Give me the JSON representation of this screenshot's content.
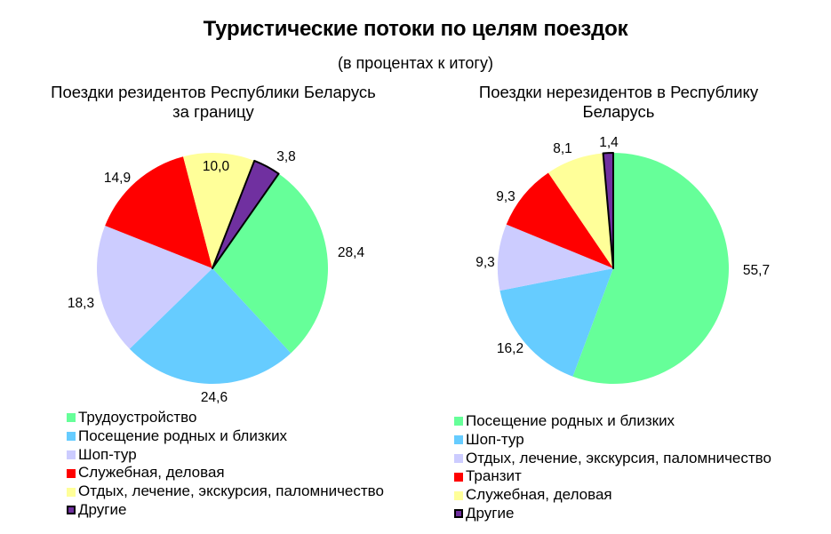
{
  "title": "Туристические потоки по целям поездок",
  "subtitle": "(в процентах к итогу)",
  "charts": {
    "left": {
      "title_line1": "Поездки резидентов Республики Беларусь",
      "title_line2": "за границу",
      "legend": [
        {
          "label": "Трудоустройство",
          "color": "#66FF99"
        },
        {
          "label": "Посещение родных и близких",
          "color": "#66CCFF"
        },
        {
          "label": "Шоп-тур",
          "color": "#CCCCFF"
        },
        {
          "label": "Служебная, деловая",
          "color": "#FF0000"
        },
        {
          "label": "Отдых, лечение, экскурсия, паломничество",
          "color": "#FFFF99"
        },
        {
          "label": "Другие",
          "color": "#7030A0"
        }
      ]
    },
    "right": {
      "title_line1": "Поездки нерезидентов в Республику",
      "title_line2": "Беларусь",
      "legend": [
        {
          "label": "Посещение родных и близких",
          "color": "#66FF99"
        },
        {
          "label": "Шоп-тур",
          "color": "#66CCFF"
        },
        {
          "label": "Отдых, лечение, экскурсия, паломничество",
          "color": "#CCCCFF"
        },
        {
          "label": "Транзит",
          "color": "#FF0000"
        },
        {
          "label": "Служебная, деловая",
          "color": "#FFFF99"
        },
        {
          "label": "Другие",
          "color": "#7030A0"
        }
      ]
    }
  },
  "chart_data": [
    {
      "type": "pie",
      "title": "Поездки резидентов Республики Беларусь за границу",
      "categories": [
        "Трудоустройство",
        "Посещение родных и близких",
        "Шоп-тур",
        "Служебная, деловая",
        "Отдых, лечение, экскурсия, паломничество",
        "Другие"
      ],
      "values": [
        28.4,
        24.6,
        18.3,
        14.9,
        10.0,
        3.8
      ],
      "value_labels": [
        "28,4",
        "24,6",
        "18,3",
        "14,9",
        "10,0",
        "3,8"
      ],
      "colors": [
        "#66FF99",
        "#66CCFF",
        "#CCCCFF",
        "#FF0000",
        "#FFFF99",
        "#7030A0"
      ],
      "start_angle_deg": 35,
      "direction": "clockwise",
      "legend_position": "bottom",
      "unit": "% к итогу"
    },
    {
      "type": "pie",
      "title": "Поездки нерезидентов в Республику Беларусь",
      "categories": [
        "Посещение родных и близких",
        "Шоп-тур",
        "Отдых, лечение, экскурсия, паломничество",
        "Транзит",
        "Служебная, деловая",
        "Другие"
      ],
      "values": [
        55.7,
        16.2,
        9.3,
        9.3,
        8.1,
        1.4
      ],
      "value_labels": [
        "55,7",
        "16,2",
        "9,3",
        "9,3",
        "8,1",
        "1,4"
      ],
      "colors": [
        "#66FF99",
        "#66CCFF",
        "#CCCCFF",
        "#FF0000",
        "#FFFF99",
        "#7030A0"
      ],
      "start_angle_deg": 0,
      "direction": "clockwise",
      "legend_position": "bottom",
      "unit": "% к итогу"
    }
  ]
}
